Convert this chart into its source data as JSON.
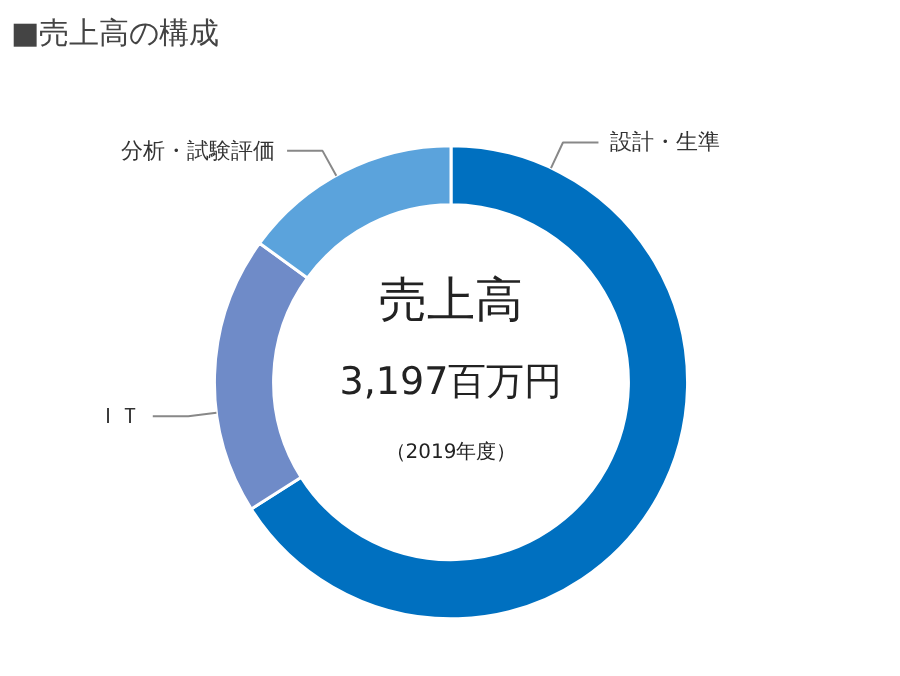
{
  "chart_data": {
    "type": "donut",
    "title": "■売上高の構成",
    "categories": [
      "設計・生準",
      "ＩＴ",
      "分析・試験評価"
    ],
    "values": [
      66,
      19,
      15
    ],
    "colors": [
      "#0070c0",
      "#6f8bc8",
      "#5ba3dc"
    ],
    "annotations": [
      "売上高",
      "3,197百万円",
      "（2019年度）"
    ]
  }
}
